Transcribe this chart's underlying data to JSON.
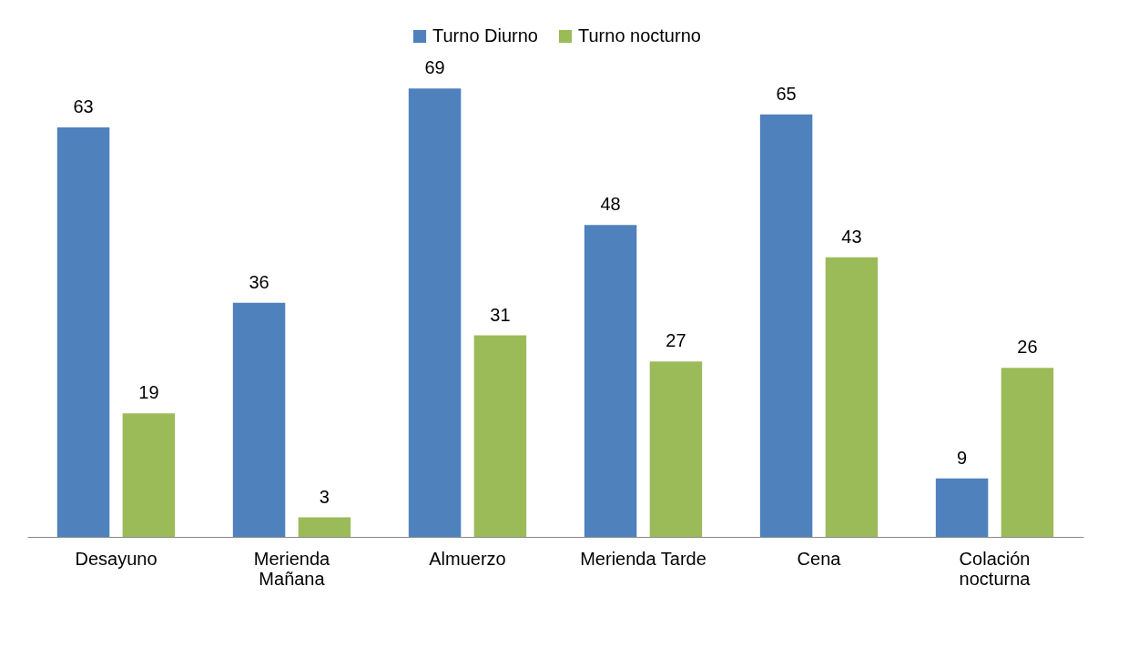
{
  "chart_data": {
    "type": "bar",
    "categories": [
      "Desayuno",
      "Merienda Mañana",
      "Almuerzo",
      "Merienda Tarde",
      "Cena",
      "Colación nocturna"
    ],
    "series": [
      {
        "name": "Turno Diurno",
        "color": "#4f81bd",
        "values": [
          63,
          36,
          69,
          48,
          65,
          9
        ]
      },
      {
        "name": "Turno nocturno",
        "color": "#9bbb59",
        "values": [
          19,
          3,
          31,
          27,
          43,
          26
        ]
      }
    ],
    "data_labels": true,
    "legend": "top",
    "grid": false,
    "tick_labels": "x"
  }
}
